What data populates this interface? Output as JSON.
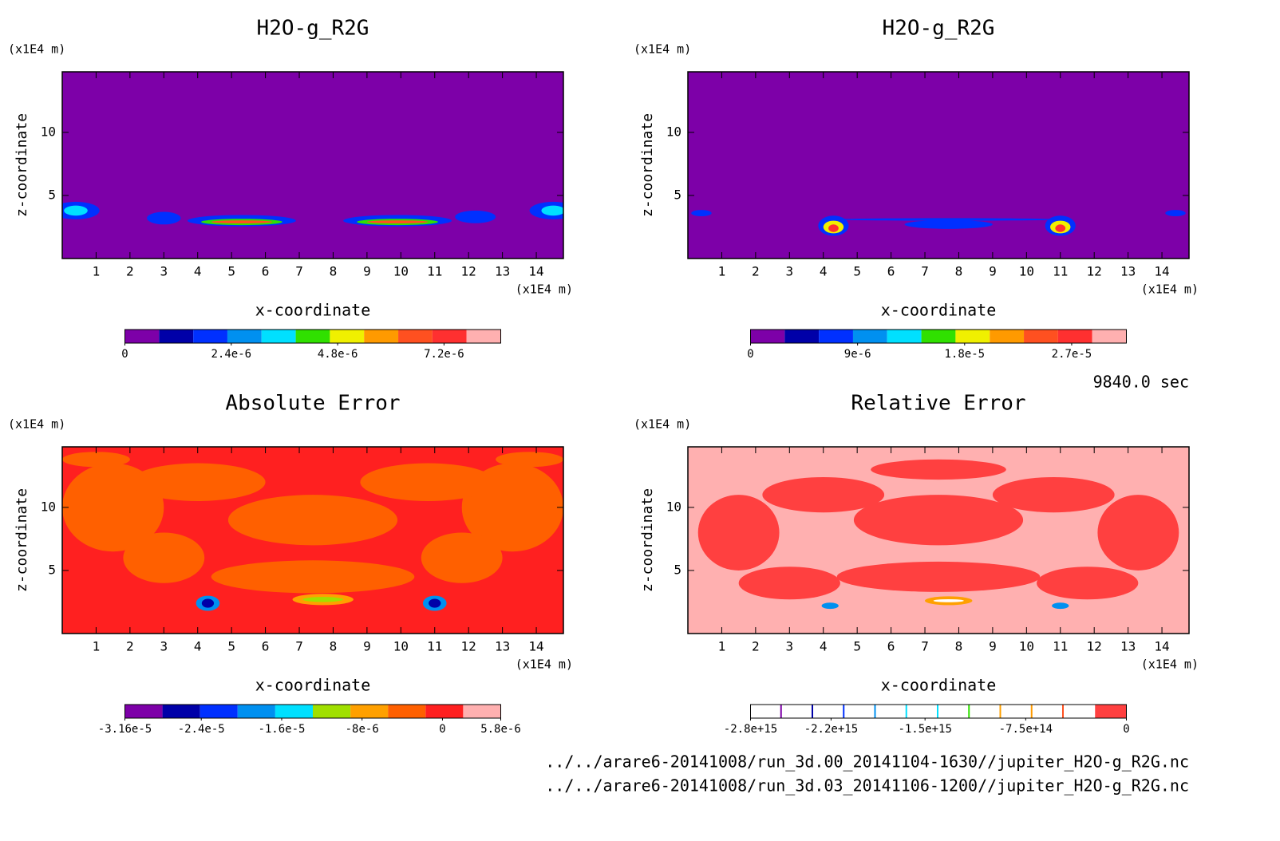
{
  "chart_data": [
    {
      "type": "contour",
      "title": "H2O-g_R2G",
      "x_label": "x-coordinate",
      "y_label": "z-coordinate",
      "x_unit": "(x1E4 m)",
      "y_unit": "(x1E4 m)",
      "xlim": [
        0,
        14.8
      ],
      "ylim": [
        0,
        14.8
      ],
      "xticks": [
        1,
        2,
        3,
        4,
        5,
        6,
        7,
        8,
        9,
        10,
        11,
        12,
        13,
        14
      ],
      "yticks": [
        5,
        10
      ],
      "field_color": "#7d00a8",
      "colorbar": {
        "lim": [
          0,
          8.48e-06
        ],
        "colors": [
          "#7d00a8",
          "#0000a8",
          "#0030ff",
          "#0090f0",
          "#00e0ff",
          "#30e000",
          "#f0f000",
          "#ff9a00",
          "#ff5020",
          "#ff3030",
          "#ffb0b0"
        ],
        "ticks": [
          0,
          {
            "value": 2.4e-06,
            "label": "2.4e-6"
          },
          {
            "value": 4.8e-06,
            "label": "4.8e-6"
          },
          {
            "value": 7.2e-06,
            "label": "7.2e-6"
          }
        ]
      }
    },
    {
      "type": "contour",
      "title": "H2O-g_R2G",
      "x_label": "x-coordinate",
      "y_label": "z-coordinate",
      "x_unit": "(x1E4 m)",
      "y_unit": "(x1E4 m)",
      "xlim": [
        0,
        14.8
      ],
      "ylim": [
        0,
        14.8
      ],
      "xticks": [
        1,
        2,
        3,
        4,
        5,
        6,
        7,
        8,
        9,
        10,
        11,
        12,
        13,
        14
      ],
      "yticks": [
        5,
        10
      ],
      "field_color": "#7d00a8",
      "colorbar": {
        "lim": [
          0,
          3.16e-05
        ],
        "colors": [
          "#7d00a8",
          "#0000a8",
          "#0030ff",
          "#0090f0",
          "#00e0ff",
          "#30e000",
          "#f0f000",
          "#ff9a00",
          "#ff5020",
          "#ff3030",
          "#ffb0b0"
        ],
        "ticks": [
          0,
          {
            "value": 9e-06,
            "label": "9e-6"
          },
          {
            "value": 1.8e-05,
            "label": "1.8e-5"
          },
          {
            "value": 2.7e-05,
            "label": "2.7e-5"
          }
        ]
      }
    },
    {
      "type": "contour",
      "title": "Absolute Error",
      "x_label": "x-coordinate",
      "y_label": "z-coordinate",
      "x_unit": "(x1E4 m)",
      "y_unit": "(x1E4 m)",
      "xlim": [
        0,
        14.8
      ],
      "ylim": [
        0,
        14.8
      ],
      "xticks": [
        1,
        2,
        3,
        4,
        5,
        6,
        7,
        8,
        9,
        10,
        11,
        12,
        13,
        14
      ],
      "yticks": [
        5,
        10
      ],
      "field_color": "#ff2020",
      "colorbar": {
        "lim": [
          -3.16e-05,
          5.8e-06
        ],
        "colors": [
          "#7d00a8",
          "#0000a8",
          "#0030ff",
          "#0090f0",
          "#00e0ff",
          "#a0e000",
          "#ffa000",
          "#ff6000",
          "#ff2020",
          "#ffb0b0"
        ],
        "ticks": [
          {
            "value": -3.16e-05,
            "label": "-3.16e-5"
          },
          {
            "value": -2.4e-05,
            "label": "-2.4e-5"
          },
          {
            "value": -1.6e-05,
            "label": "-1.6e-5"
          },
          {
            "value": -8e-06,
            "label": "-8e-6"
          },
          0,
          {
            "value": 5.8e-06,
            "label": "5.8e-6"
          }
        ]
      }
    },
    {
      "type": "contour",
      "title": "Relative Error",
      "x_label": "x-coordinate",
      "y_label": "z-coordinate",
      "x_unit": "(x1E4 m)",
      "y_unit": "(x1E4 m)",
      "xlim": [
        0,
        14.8
      ],
      "ylim": [
        0,
        14.8
      ],
      "xticks": [
        1,
        2,
        3,
        4,
        5,
        6,
        7,
        8,
        9,
        10,
        11,
        12,
        13,
        14
      ],
      "yticks": [
        5,
        10
      ],
      "field_color": "#ffb0b0",
      "colorbar": {
        "lim": [
          -2800000000000000.0,
          0
        ],
        "colors": [
          "#7d00a8",
          "#0000a8",
          "#0030ff",
          "#0090f0",
          "#00e0ff",
          "#00e0ff",
          "#30e000",
          "#ffa000",
          "#ff9a00",
          "#ff5020",
          "#ffffff",
          "#ff4040"
        ],
        "ticks": [
          {
            "value": -2800000000000000.0,
            "label": "-2.8e+15"
          },
          {
            "value": -2200000000000000.0,
            "label": "-2.2e+15"
          },
          {
            "value": -1500000000000000.0,
            "label": "-1.5e+15"
          },
          {
            "value": -750000000000000.0,
            "label": "-7.5e+14"
          },
          0
        ]
      }
    }
  ],
  "time_label": "9840.0 sec",
  "files": [
    "../../arare6-20141008/run_3d.00_20141104-1630//jupiter_H2O-g_R2G.nc",
    "../../arare6-20141008/run_3d.03_20141106-1200//jupiter_H2O-g_R2G.nc"
  ]
}
